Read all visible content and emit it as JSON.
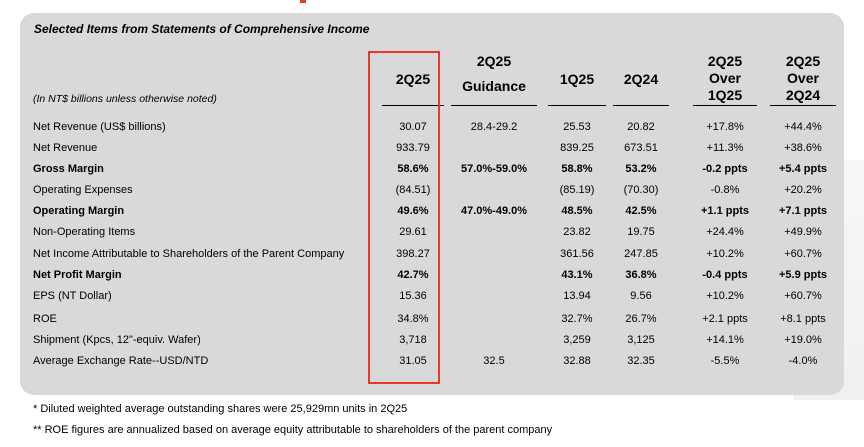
{
  "title": "Selected Items from Statements of Comprehensive Income",
  "units_note": "(In NT$ billions unless otherwise noted)",
  "colors": {
    "highlight": "#e8392b",
    "panel": "#d9d9d9"
  },
  "columns": [
    {
      "lines": [
        "2Q25"
      ]
    },
    {
      "lines": [
        "2Q25",
        "Guidance"
      ]
    },
    {
      "lines": [
        "1Q25"
      ]
    },
    {
      "lines": [
        "2Q24"
      ]
    },
    {
      "lines": [
        "2Q25",
        "Over",
        "1Q25"
      ]
    },
    {
      "lines": [
        "2Q25",
        "Over",
        "2Q24"
      ]
    }
  ],
  "rows": [
    {
      "label": "Net Revenue (US$ billions)",
      "bold": false,
      "cells": [
        "30.07",
        "28.4-29.2",
        "25.53",
        "20.82",
        "+17.8%",
        "+44.4%"
      ]
    },
    {
      "label": "Net Revenue",
      "bold": false,
      "cells": [
        "933.79",
        "",
        "839.25",
        "673.51",
        "+11.3%",
        "+38.6%"
      ]
    },
    {
      "label": "Gross Margin",
      "bold": true,
      "cells": [
        "58.6%",
        "57.0%-59.0%",
        "58.8%",
        "53.2%",
        "-0.2 ppts",
        "+5.4 ppts"
      ]
    },
    {
      "label": "Operating Expenses",
      "bold": false,
      "cells": [
        "(84.51)",
        "",
        "(85.19)",
        "(70.30)",
        "-0.8%",
        "+20.2%"
      ]
    },
    {
      "label": "Operating Margin",
      "bold": true,
      "cells": [
        "49.6%",
        "47.0%-49.0%",
        "48.5%",
        "42.5%",
        "+1.1 ppts",
        "+7.1 ppts"
      ]
    },
    {
      "label": "Non-Operating Items",
      "bold": false,
      "cells": [
        "29.61",
        "",
        "23.82",
        "19.75",
        "+24.4%",
        "+49.9%"
      ]
    },
    {
      "label": "Net Income Attributable to Shareholders of the Parent Company",
      "bold": false,
      "cells": [
        "398.27",
        "",
        "361.56",
        "247.85",
        "+10.2%",
        "+60.7%"
      ]
    },
    {
      "label": "Net Profit Margin",
      "bold": true,
      "cells": [
        "42.7%",
        "",
        "43.1%",
        "36.8%",
        "-0.4 ppts",
        "+5.9 ppts"
      ]
    },
    {
      "label": "EPS (NT Dollar)",
      "bold": false,
      "cells": [
        "15.36",
        "",
        "13.94",
        "9.56",
        "+10.2%",
        "+60.7%"
      ]
    },
    {
      "label": "ROE",
      "bold": false,
      "cells": [
        "34.8%",
        "",
        "32.7%",
        "26.7%",
        "+2.1 ppts",
        "+8.1 ppts"
      ]
    },
    {
      "label": "Shipment (Kpcs, 12\"-equiv. Wafer)",
      "bold": false,
      "cells": [
        "3,718",
        "",
        "3,259",
        "3,125",
        "+14.1%",
        "+19.0%"
      ]
    },
    {
      "label": "Average Exchange Rate--USD/NTD",
      "bold": false,
      "cells": [
        "31.05",
        "32.5",
        "32.88",
        "32.35",
        "-5.5%",
        "-4.0%"
      ]
    }
  ],
  "footnotes": [
    "*    Diluted weighted average outstanding shares were 25,929mn units in 2Q25",
    "**  ROE figures are annualized based on average equity attributable to shareholders of the parent company"
  ]
}
